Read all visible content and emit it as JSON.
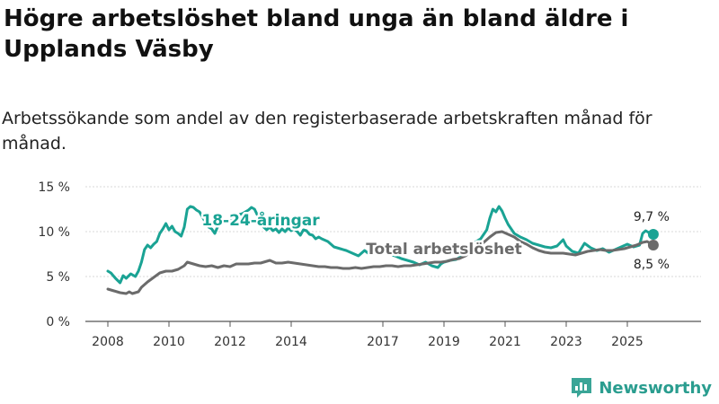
{
  "title": "Högre arbetslöshet bland unga än bland äldre i Upplands Väsby",
  "subtitle": "Arbetssökande som andel av den registerbaserade arbetskraften månad för månad.",
  "brand": {
    "name": "Newsworthy",
    "color": "#2a9d8f"
  },
  "chart_data": {
    "type": "line",
    "title": "",
    "xlabel": "",
    "ylabel": "",
    "xlim": [
      2007.5,
      2026.5
    ],
    "ylim": [
      0,
      15
    ],
    "grid": true,
    "yticks": [
      0,
      5,
      10,
      15
    ],
    "ytick_labels": [
      "0 %",
      "5 %",
      "10 %",
      "15 %"
    ],
    "xticks": [
      2008,
      2010,
      2012,
      2014,
      2017,
      2019,
      2021,
      2023,
      2025
    ],
    "xtick_labels": [
      "2008",
      "2010",
      "2012",
      "2014",
      "2017",
      "2019",
      "2021",
      "2023",
      "2025"
    ],
    "series": [
      {
        "name": "18-24-åringar",
        "color": "#1aa394",
        "end_label": "9,7 %",
        "points": [
          [
            2008.0,
            5.6
          ],
          [
            2008.1,
            5.4
          ],
          [
            2008.25,
            4.8
          ],
          [
            2008.4,
            4.3
          ],
          [
            2008.5,
            5.1
          ],
          [
            2008.6,
            4.8
          ],
          [
            2008.75,
            5.3
          ],
          [
            2008.9,
            5.0
          ],
          [
            2009.0,
            5.6
          ],
          [
            2009.1,
            6.6
          ],
          [
            2009.2,
            8.0
          ],
          [
            2009.3,
            8.5
          ],
          [
            2009.4,
            8.2
          ],
          [
            2009.5,
            8.6
          ],
          [
            2009.6,
            8.9
          ],
          [
            2009.7,
            9.8
          ],
          [
            2009.8,
            10.3
          ],
          [
            2009.9,
            10.9
          ],
          [
            2010.0,
            10.2
          ],
          [
            2010.1,
            10.6
          ],
          [
            2010.2,
            10.0
          ],
          [
            2010.3,
            9.8
          ],
          [
            2010.4,
            9.5
          ],
          [
            2010.5,
            10.5
          ],
          [
            2010.6,
            12.5
          ],
          [
            2010.7,
            12.8
          ],
          [
            2010.8,
            12.7
          ],
          [
            2010.9,
            12.4
          ],
          [
            2011.0,
            12.2
          ],
          [
            2011.1,
            11.6
          ],
          [
            2011.2,
            11.0
          ],
          [
            2011.3,
            10.5
          ],
          [
            2011.4,
            10.3
          ],
          [
            2011.5,
            9.8
          ],
          [
            2011.6,
            10.6
          ],
          [
            2011.7,
            11.4
          ],
          [
            2011.8,
            11.1
          ],
          [
            2011.9,
            11.0
          ],
          [
            2012.0,
            11.2
          ],
          [
            2012.1,
            11.4
          ],
          [
            2012.2,
            11.7
          ],
          [
            2012.3,
            11.9
          ],
          [
            2012.4,
            12.0
          ],
          [
            2012.5,
            12.2
          ],
          [
            2012.6,
            12.4
          ],
          [
            2012.7,
            12.7
          ],
          [
            2012.8,
            12.5
          ],
          [
            2012.9,
            11.8
          ],
          [
            2013.0,
            11.2
          ],
          [
            2013.1,
            10.5
          ],
          [
            2013.2,
            10.2
          ],
          [
            2013.3,
            10.5
          ],
          [
            2013.4,
            10.1
          ],
          [
            2013.5,
            10.3
          ],
          [
            2013.6,
            9.9
          ],
          [
            2013.7,
            10.3
          ],
          [
            2013.8,
            10.0
          ],
          [
            2013.9,
            10.4
          ],
          [
            2014.0,
            10.1
          ],
          [
            2014.1,
            10.3
          ],
          [
            2014.2,
            10.0
          ],
          [
            2014.3,
            9.6
          ],
          [
            2014.4,
            10.2
          ],
          [
            2014.5,
            10.1
          ],
          [
            2014.6,
            9.7
          ],
          [
            2014.7,
            9.6
          ],
          [
            2014.8,
            9.2
          ],
          [
            2014.9,
            9.4
          ],
          [
            2015.0,
            9.2
          ],
          [
            2015.2,
            8.9
          ],
          [
            2015.4,
            8.3
          ],
          [
            2015.6,
            8.1
          ],
          [
            2015.8,
            7.9
          ],
          [
            2016.0,
            7.6
          ],
          [
            2016.2,
            7.3
          ],
          [
            2016.4,
            7.9
          ],
          [
            2016.6,
            7.4
          ],
          [
            2016.8,
            7.7
          ],
          [
            2017.0,
            8.1
          ],
          [
            2017.2,
            7.5
          ],
          [
            2017.4,
            7.3
          ],
          [
            2017.6,
            7.0
          ],
          [
            2017.8,
            6.8
          ],
          [
            2018.0,
            6.6
          ],
          [
            2018.2,
            6.3
          ],
          [
            2018.4,
            6.6
          ],
          [
            2018.6,
            6.2
          ],
          [
            2018.8,
            6.0
          ],
          [
            2018.9,
            6.4
          ],
          [
            2019.0,
            6.6
          ],
          [
            2019.2,
            6.8
          ],
          [
            2019.4,
            6.9
          ],
          [
            2019.6,
            7.3
          ],
          [
            2019.8,
            8.0
          ],
          [
            2020.0,
            8.8
          ],
          [
            2020.2,
            9.2
          ],
          [
            2020.4,
            10.2
          ],
          [
            2020.5,
            11.5
          ],
          [
            2020.6,
            12.5
          ],
          [
            2020.7,
            12.2
          ],
          [
            2020.8,
            12.8
          ],
          [
            2020.9,
            12.3
          ],
          [
            2021.0,
            11.5
          ],
          [
            2021.1,
            10.8
          ],
          [
            2021.2,
            10.3
          ],
          [
            2021.3,
            9.8
          ],
          [
            2021.5,
            9.4
          ],
          [
            2021.7,
            9.1
          ],
          [
            2021.9,
            8.7
          ],
          [
            2022.1,
            8.5
          ],
          [
            2022.3,
            8.3
          ],
          [
            2022.5,
            8.2
          ],
          [
            2022.7,
            8.4
          ],
          [
            2022.9,
            9.1
          ],
          [
            2023.0,
            8.4
          ],
          [
            2023.2,
            7.8
          ],
          [
            2023.4,
            7.6
          ],
          [
            2023.6,
            8.7
          ],
          [
            2023.8,
            8.2
          ],
          [
            2024.0,
            7.9
          ],
          [
            2024.2,
            8.1
          ],
          [
            2024.4,
            7.7
          ],
          [
            2024.6,
            8.0
          ],
          [
            2024.8,
            8.3
          ],
          [
            2025.0,
            8.6
          ],
          [
            2025.2,
            8.3
          ],
          [
            2025.4,
            8.5
          ],
          [
            2025.5,
            9.8
          ],
          [
            2025.6,
            10.1
          ],
          [
            2025.7,
            9.9
          ],
          [
            2025.85,
            9.7
          ]
        ]
      },
      {
        "name": "Total arbetslöshet",
        "color": "#6b6b6b",
        "end_label": "8,5 %",
        "points": [
          [
            2008.0,
            3.6
          ],
          [
            2008.2,
            3.4
          ],
          [
            2008.4,
            3.2
          ],
          [
            2008.6,
            3.1
          ],
          [
            2008.7,
            3.3
          ],
          [
            2008.8,
            3.1
          ],
          [
            2009.0,
            3.3
          ],
          [
            2009.1,
            3.8
          ],
          [
            2009.3,
            4.4
          ],
          [
            2009.5,
            4.9
          ],
          [
            2009.7,
            5.4
          ],
          [
            2009.9,
            5.6
          ],
          [
            2010.1,
            5.6
          ],
          [
            2010.3,
            5.8
          ],
          [
            2010.5,
            6.2
          ],
          [
            2010.6,
            6.6
          ],
          [
            2010.8,
            6.4
          ],
          [
            2011.0,
            6.2
          ],
          [
            2011.2,
            6.1
          ],
          [
            2011.4,
            6.2
          ],
          [
            2011.6,
            6.0
          ],
          [
            2011.8,
            6.2
          ],
          [
            2012.0,
            6.1
          ],
          [
            2012.2,
            6.4
          ],
          [
            2012.4,
            6.4
          ],
          [
            2012.6,
            6.4
          ],
          [
            2012.8,
            6.5
          ],
          [
            2013.0,
            6.5
          ],
          [
            2013.2,
            6.7
          ],
          [
            2013.3,
            6.8
          ],
          [
            2013.5,
            6.5
          ],
          [
            2013.7,
            6.5
          ],
          [
            2013.9,
            6.6
          ],
          [
            2014.1,
            6.5
          ],
          [
            2014.3,
            6.4
          ],
          [
            2014.5,
            6.3
          ],
          [
            2014.7,
            6.2
          ],
          [
            2014.9,
            6.1
          ],
          [
            2015.1,
            6.1
          ],
          [
            2015.3,
            6.0
          ],
          [
            2015.5,
            6.0
          ],
          [
            2015.7,
            5.9
          ],
          [
            2015.9,
            5.9
          ],
          [
            2016.1,
            6.0
          ],
          [
            2016.3,
            5.9
          ],
          [
            2016.5,
            6.0
          ],
          [
            2016.7,
            6.1
          ],
          [
            2016.9,
            6.1
          ],
          [
            2017.1,
            6.2
          ],
          [
            2017.3,
            6.2
          ],
          [
            2017.5,
            6.1
          ],
          [
            2017.7,
            6.2
          ],
          [
            2017.9,
            6.2
          ],
          [
            2018.1,
            6.3
          ],
          [
            2018.3,
            6.4
          ],
          [
            2018.5,
            6.5
          ],
          [
            2018.7,
            6.6
          ],
          [
            2018.9,
            6.6
          ],
          [
            2019.1,
            6.7
          ],
          [
            2019.3,
            6.9
          ],
          [
            2019.5,
            7.0
          ],
          [
            2019.7,
            7.3
          ],
          [
            2019.9,
            7.8
          ],
          [
            2020.1,
            8.2
          ],
          [
            2020.3,
            8.8
          ],
          [
            2020.5,
            9.4
          ],
          [
            2020.7,
            9.9
          ],
          [
            2020.9,
            10.0
          ],
          [
            2021.1,
            9.7
          ],
          [
            2021.3,
            9.4
          ],
          [
            2021.5,
            8.9
          ],
          [
            2021.7,
            8.6
          ],
          [
            2021.9,
            8.2
          ],
          [
            2022.1,
            7.9
          ],
          [
            2022.3,
            7.7
          ],
          [
            2022.5,
            7.6
          ],
          [
            2022.7,
            7.6
          ],
          [
            2022.9,
            7.6
          ],
          [
            2023.1,
            7.5
          ],
          [
            2023.3,
            7.4
          ],
          [
            2023.5,
            7.6
          ],
          [
            2023.7,
            7.8
          ],
          [
            2023.9,
            7.9
          ],
          [
            2024.1,
            8.0
          ],
          [
            2024.3,
            7.9
          ],
          [
            2024.5,
            7.9
          ],
          [
            2024.7,
            8.0
          ],
          [
            2024.9,
            8.1
          ],
          [
            2025.1,
            8.3
          ],
          [
            2025.3,
            8.5
          ],
          [
            2025.5,
            8.8
          ],
          [
            2025.65,
            8.9
          ],
          [
            2025.85,
            8.5
          ]
        ]
      }
    ],
    "annotations": [
      {
        "text": "18-24-åringar",
        "series": 0,
        "x": 2013.0,
        "y": 11.2,
        "color": "#1aa394"
      },
      {
        "text": "Total arbetslöshet",
        "series": 1,
        "x": 2019.0,
        "y": 8.0,
        "color": "#6b6b6b"
      }
    ]
  }
}
